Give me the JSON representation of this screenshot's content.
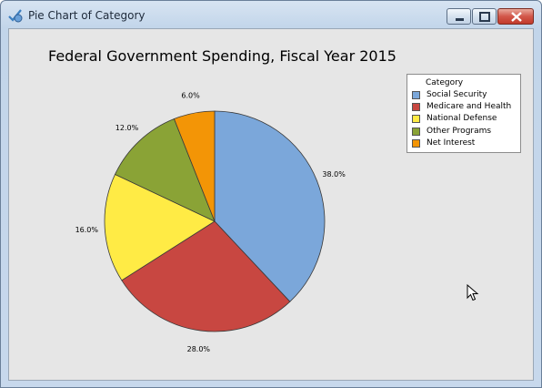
{
  "window": {
    "title": "Pie Chart of Category",
    "icon": "minitab-chart-icon",
    "controls": [
      "minimize-icon",
      "maximize-icon",
      "close-icon"
    ]
  },
  "chart_data": {
    "type": "pie",
    "title": "Federal Government Spending, Fiscal Year 2015",
    "legend_title": "Category",
    "legend_position": "top-right",
    "categories": [
      "Social Security",
      "Medicare and Health",
      "National Defense",
      "Other Programs",
      "Net Interest"
    ],
    "values": [
      38.0,
      28.0,
      16.0,
      12.0,
      6.0
    ],
    "labels": [
      "38.0%",
      "28.0%",
      "16.0%",
      "12.0%",
      "6.0%"
    ],
    "colors": [
      "#7ba7da",
      "#c84741",
      "#ffeb45",
      "#8aa336",
      "#f39506"
    ]
  }
}
